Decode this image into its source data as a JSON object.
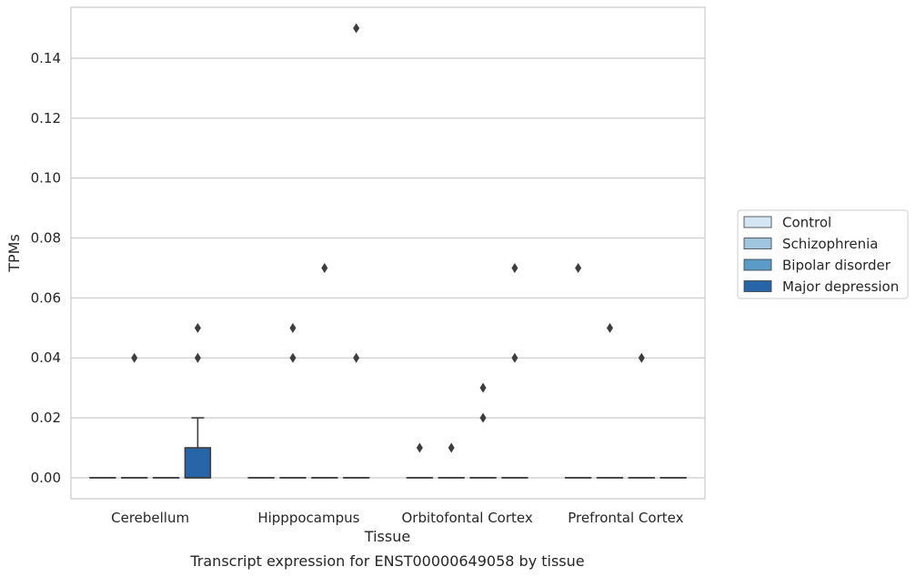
{
  "chart_data": {
    "type": "box",
    "xlabel": "Tissue",
    "ylabel": "TPMs",
    "caption": "Transcript expression for ENST00000649058 by tissue",
    "ylim": [
      -0.007,
      0.157
    ],
    "yticks": [
      "0.00",
      "0.02",
      "0.04",
      "0.06",
      "0.08",
      "0.10",
      "0.12",
      "0.14"
    ],
    "grid": "horizontal",
    "legend_position": "right",
    "categories": [
      "Cerebellum",
      "Hipppocampus",
      "Orbitofontal Cortex",
      "Prefrontal Cortex"
    ],
    "series": [
      {
        "name": "Control",
        "color": "#d4e5f4",
        "boxes": [
          {
            "q1": 0,
            "median": 0,
            "q3": 0,
            "whisker_low": 0,
            "whisker_high": 0,
            "outliers": []
          },
          {
            "q1": 0,
            "median": 0,
            "q3": 0,
            "whisker_low": 0,
            "whisker_high": 0,
            "outliers": []
          },
          {
            "q1": 0,
            "median": 0,
            "q3": 0,
            "whisker_low": 0,
            "whisker_high": 0,
            "outliers": [
              0.01
            ]
          },
          {
            "q1": 0,
            "median": 0,
            "q3": 0,
            "whisker_low": 0,
            "whisker_high": 0,
            "outliers": [
              0.07
            ]
          }
        ]
      },
      {
        "name": "Schizophrenia",
        "color": "#a0c6df",
        "boxes": [
          {
            "q1": 0,
            "median": 0,
            "q3": 0,
            "whisker_low": 0,
            "whisker_high": 0,
            "outliers": [
              0.04
            ]
          },
          {
            "q1": 0,
            "median": 0,
            "q3": 0,
            "whisker_low": 0,
            "whisker_high": 0,
            "outliers": [
              0.05,
              0.04
            ]
          },
          {
            "q1": 0,
            "median": 0,
            "q3": 0,
            "whisker_low": 0,
            "whisker_high": 0,
            "outliers": [
              0.01
            ]
          },
          {
            "q1": 0,
            "median": 0,
            "q3": 0,
            "whisker_low": 0,
            "whisker_high": 0,
            "outliers": [
              0.05
            ]
          }
        ]
      },
      {
        "name": "Bipolar disorder",
        "color": "#5b9bc8",
        "boxes": [
          {
            "q1": 0,
            "median": 0,
            "q3": 0,
            "whisker_low": 0,
            "whisker_high": 0,
            "outliers": []
          },
          {
            "q1": 0,
            "median": 0,
            "q3": 0,
            "whisker_low": 0,
            "whisker_high": 0,
            "outliers": [
              0.07
            ]
          },
          {
            "q1": 0,
            "median": 0,
            "q3": 0,
            "whisker_low": 0,
            "whisker_high": 0,
            "outliers": [
              0.03,
              0.02
            ]
          },
          {
            "q1": 0,
            "median": 0,
            "q3": 0,
            "whisker_low": 0,
            "whisker_high": 0,
            "outliers": [
              0.04
            ]
          }
        ]
      },
      {
        "name": "Major depression",
        "color": "#2765a8",
        "boxes": [
          {
            "q1": 0,
            "median": 0,
            "q3": 0.01,
            "whisker_low": 0,
            "whisker_high": 0.02,
            "outliers": [
              0.05,
              0.04
            ]
          },
          {
            "q1": 0,
            "median": 0,
            "q3": 0,
            "whisker_low": 0,
            "whisker_high": 0,
            "outliers": [
              0.15,
              0.04
            ]
          },
          {
            "q1": 0,
            "median": 0,
            "q3": 0,
            "whisker_low": 0,
            "whisker_high": 0,
            "outliers": [
              0.07,
              0.04
            ]
          },
          {
            "q1": 0,
            "median": 0,
            "q3": 0,
            "whisker_low": 0,
            "whisker_high": 0,
            "outliers": []
          }
        ]
      }
    ]
  }
}
